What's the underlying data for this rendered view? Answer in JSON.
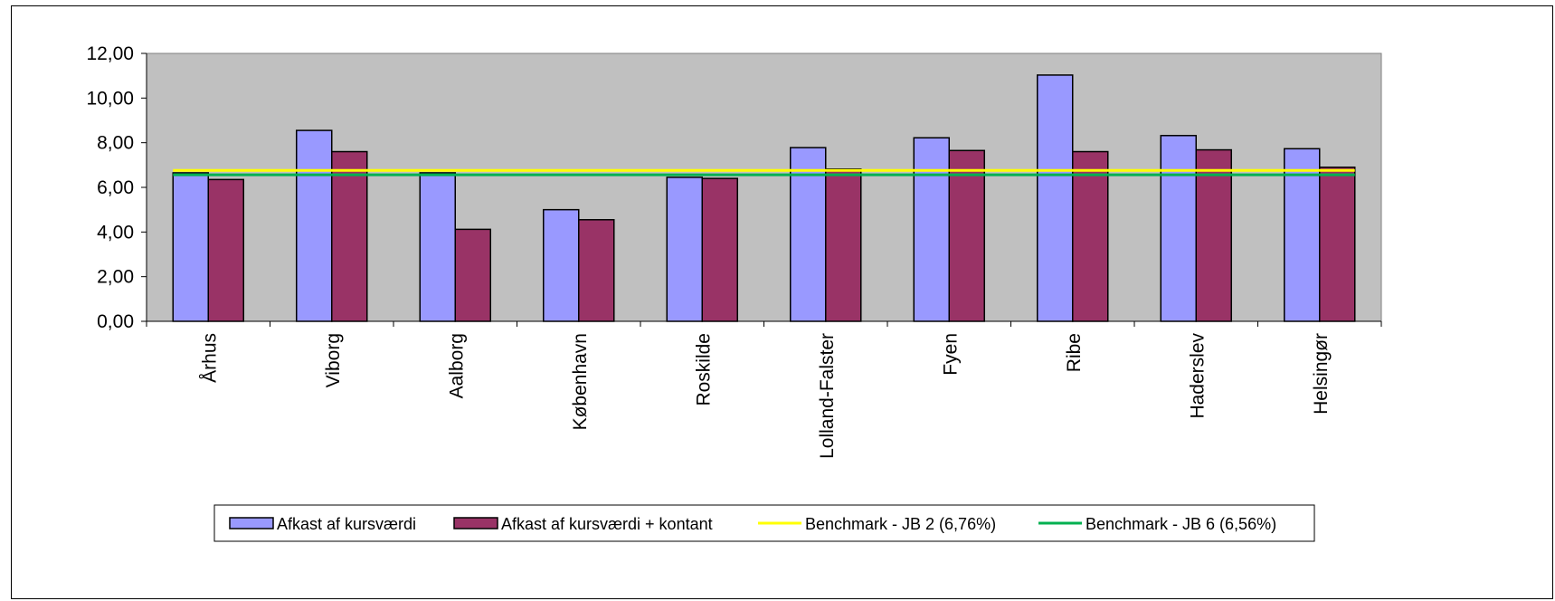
{
  "chart_data": {
    "type": "bar",
    "categories": [
      "Århus",
      "Viborg",
      "Aalborg",
      "København",
      "Roskilde",
      "Lolland-Falster",
      "Fyen",
      "Ribe",
      "Haderslev",
      "Helsingør"
    ],
    "series": [
      {
        "name": "Afkast af kursværdi",
        "type": "bar",
        "color": "#9999ff",
        "values": [
          6.65,
          8.55,
          6.65,
          5.0,
          6.45,
          7.78,
          8.22,
          11.03,
          8.32,
          7.73
        ]
      },
      {
        "name": "Afkast af kursværdi + kontant",
        "type": "bar",
        "color": "#993366",
        "values": [
          6.35,
          7.6,
          4.12,
          4.55,
          6.4,
          6.82,
          7.65,
          7.6,
          7.68,
          6.9
        ]
      },
      {
        "name": "Benchmark - JB 2 (6,76%)",
        "type": "line",
        "color": "#ffff00",
        "value": 6.76
      },
      {
        "name": "Benchmark - JB 6 (6,56%)",
        "type": "line",
        "color": "#00b050",
        "value": 6.56
      }
    ],
    "yticks": [
      "0,00",
      "2,00",
      "4,00",
      "6,00",
      "8,00",
      "10,00",
      "12,00"
    ],
    "ylim": [
      0,
      12
    ],
    "plot_background": "#c0c0c0",
    "legend_position": "bottom",
    "title": "",
    "xlabel": "",
    "ylabel": ""
  }
}
